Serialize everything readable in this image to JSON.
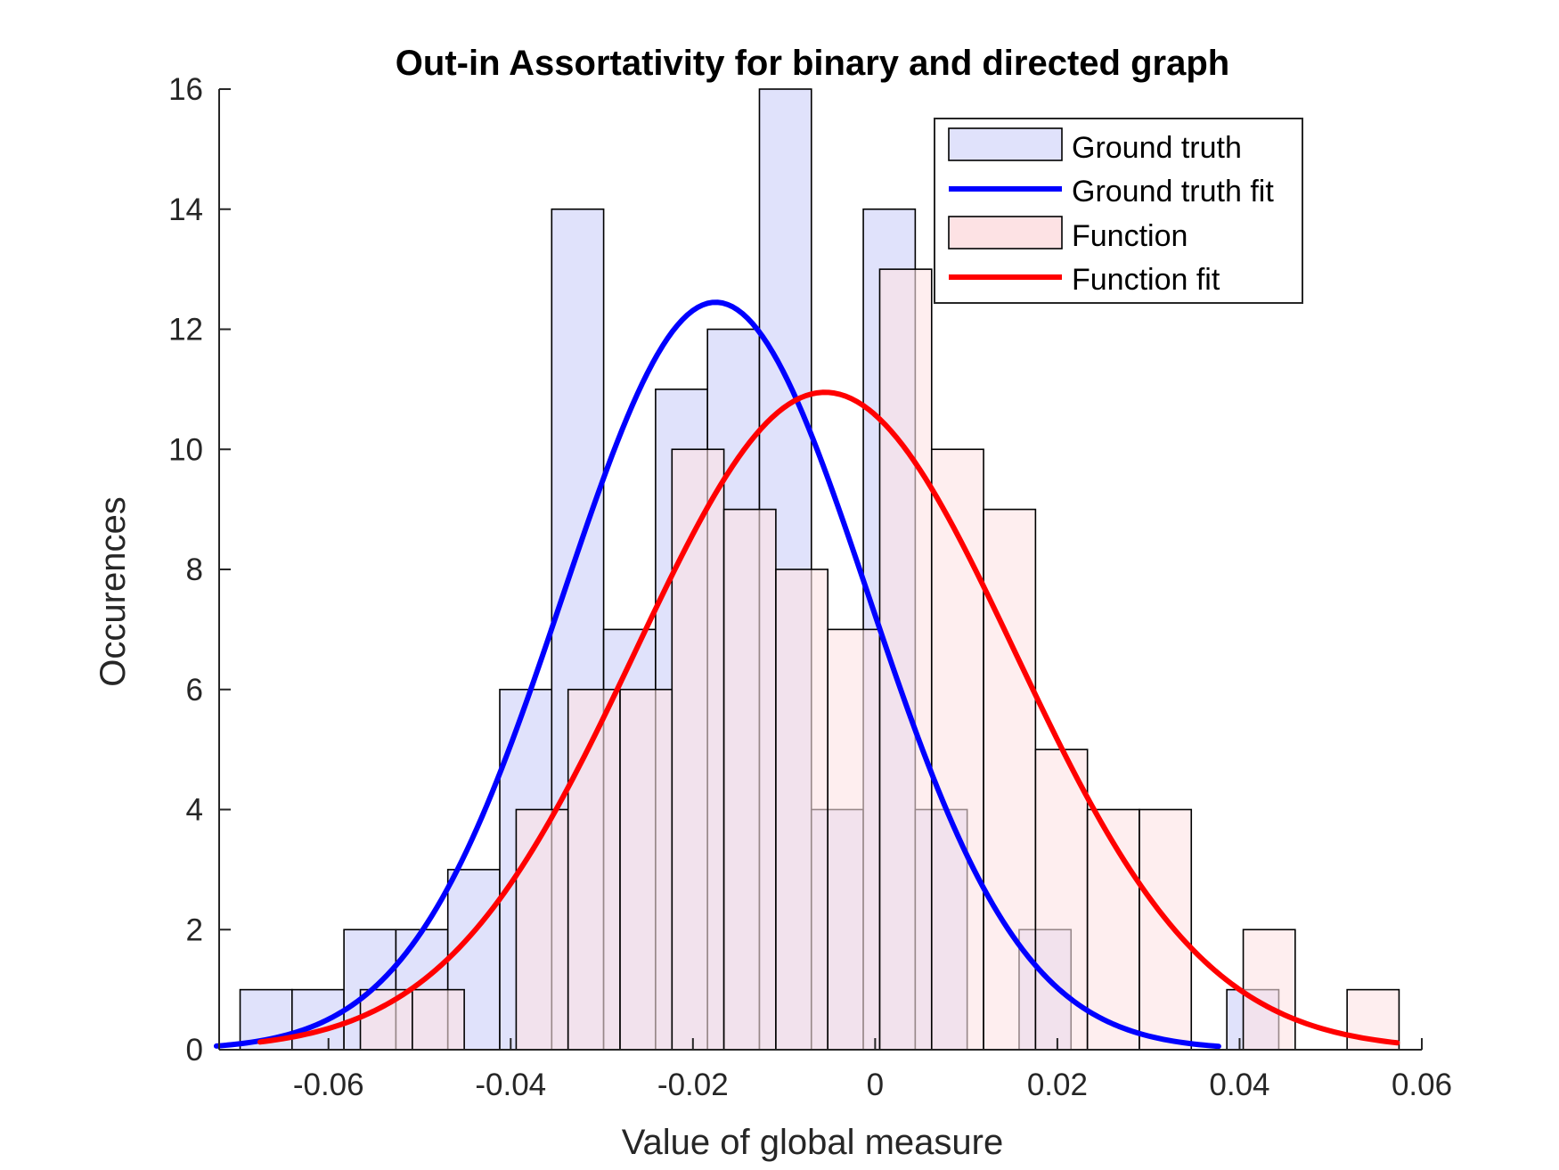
{
  "chart_data": {
    "type": "bar",
    "title": "Out-in Assortativity for binary and directed graph",
    "xlabel": "Value of global measure",
    "ylabel": "Occurences",
    "xlim": [
      -0.072,
      0.06
    ],
    "ylim": [
      0,
      16
    ],
    "xticks": [
      -0.06,
      -0.04,
      -0.02,
      0,
      0.02,
      0.04,
      0.06
    ],
    "xtick_labels": [
      "-0.06",
      "-0.04",
      "-0.02",
      "0",
      "0.02",
      "0.04",
      "0.06"
    ],
    "yticks": [
      0,
      2,
      4,
      6,
      8,
      10,
      12,
      14,
      16
    ],
    "ytick_labels": [
      "0",
      "2",
      "4",
      "6",
      "8",
      "10",
      "12",
      "14",
      "16"
    ],
    "grid": false,
    "legend_position": "top-right",
    "series": [
      {
        "name": "Ground truth",
        "kind": "histogram",
        "color": "#e0e2fb",
        "bin_width": 0.0057,
        "bin_starts": [
          -0.0697,
          -0.064,
          -0.0583,
          -0.0526,
          -0.0469,
          -0.0412,
          -0.0355,
          -0.0298,
          -0.0241,
          -0.0184,
          -0.0127,
          -0.007,
          -0.0013,
          0.0044,
          0.0101,
          0.0158,
          0.0215,
          0.0272,
          0.0329,
          0.0386
        ],
        "counts": [
          1,
          1,
          2,
          2,
          3,
          6,
          14,
          7,
          11,
          12,
          16,
          4,
          14,
          4,
          0,
          2,
          0,
          0,
          0,
          1
        ]
      },
      {
        "name": "Ground truth fit",
        "kind": "normal-fit",
        "color": "#0000ff",
        "mean": -0.0175,
        "sd": 0.0168,
        "peak": 12.45,
        "x_range": [
          -0.0723,
          0.0377
        ]
      },
      {
        "name": "Function",
        "kind": "histogram",
        "color": "#fde2e4",
        "bin_width": 0.0057,
        "bin_starts": [
          -0.0679,
          -0.0622,
          -0.0565,
          -0.0508,
          -0.0451,
          -0.0394,
          -0.0337,
          -0.028,
          -0.0223,
          -0.0166,
          -0.0109,
          -0.0052,
          0.0005,
          0.0062,
          0.0119,
          0.0176,
          0.0233,
          0.029,
          0.0347,
          0.0404,
          0.0461,
          0.0518
        ],
        "counts": [
          0,
          0,
          1,
          1,
          0,
          4,
          6,
          6,
          10,
          9,
          8,
          7,
          13,
          10,
          9,
          5,
          4,
          4,
          0,
          2,
          0,
          1
        ]
      },
      {
        "name": "Function fit",
        "kind": "normal-fit",
        "color": "#ff0000",
        "mean": -0.0055,
        "sd": 0.0208,
        "peak": 10.95,
        "x_range": [
          -0.0675,
          0.0573
        ]
      }
    ]
  }
}
